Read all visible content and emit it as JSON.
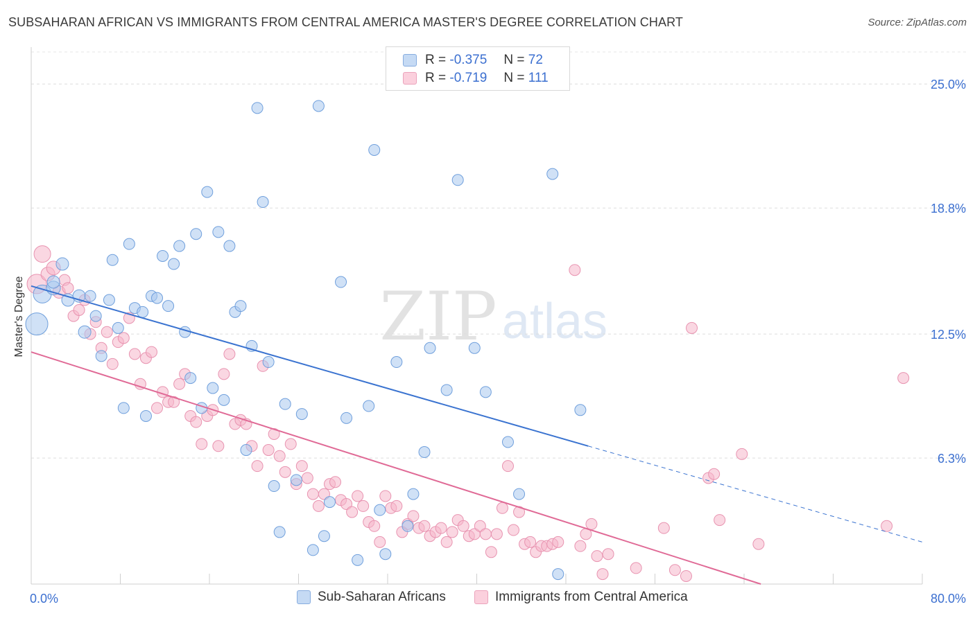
{
  "title": "SUBSAHARAN AFRICAN VS IMMIGRANTS FROM CENTRAL AMERICA MASTER'S DEGREE CORRELATION CHART",
  "source": "Source: ZipAtlas.com",
  "watermark": {
    "zip": "ZIP",
    "atlas": "atlas"
  },
  "colors": {
    "blue": "#3a73d0",
    "blue_fill": "#a9c8ee",
    "pink": "#e06a96",
    "pink_fill": "#f5b7ca",
    "axis_text": "#3b6fd0",
    "grid": "#dddddd"
  },
  "legend": {
    "series": [
      {
        "r_label": "R =",
        "r_value": "-0.375",
        "n_label": "N =",
        "n_value": "72",
        "color": "#a9c8ee"
      },
      {
        "r_label": "R =",
        "r_value": "-0.719",
        "n_label": "N =",
        "n_value": "111",
        "color": "#f5b7ca"
      }
    ]
  },
  "bottom_legend": [
    "Sub-Saharan Africans",
    "Immigrants from Central America"
  ],
  "chart_data": {
    "type": "scatter",
    "title": "SUBSAHARAN AFRICAN VS IMMIGRANTS FROM CENTRAL AMERICA MASTER'S DEGREE CORRELATION CHART",
    "xlabel": "",
    "ylabel": "Master's Degree",
    "xlim": [
      0,
      80
    ],
    "ylim": [
      0,
      26.6
    ],
    "x_tick_labels": [
      "0.0%",
      "80.0%"
    ],
    "y_ticks": [
      6.3,
      12.5,
      18.8,
      25.0
    ],
    "y_tick_labels": [
      "6.3%",
      "12.5%",
      "18.8%",
      "25.0%"
    ],
    "grid": "horizontal dashed",
    "series": [
      {
        "name": "Sub-Saharan Africans",
        "color": "#a9c8ee",
        "stroke": "#6f9fdc",
        "trend": {
          "x": [
            0,
            50
          ],
          "y": [
            14.9,
            6.9
          ],
          "dashed_to": [
            80,
            2.1
          ],
          "color": "#3a73d0"
        },
        "points": [
          [
            0.5,
            13.0,
            16
          ],
          [
            1.0,
            14.5,
            13
          ],
          [
            2.0,
            14.8,
            10
          ],
          [
            2.8,
            16.0,
            9
          ],
          [
            2.0,
            15.1,
            9
          ],
          [
            3.3,
            14.2,
            9
          ],
          [
            4.3,
            14.4,
            9
          ],
          [
            5.3,
            14.4,
            8
          ],
          [
            4.8,
            12.6,
            9
          ],
          [
            5.8,
            13.4,
            8
          ],
          [
            6.3,
            11.4,
            8
          ],
          [
            7.0,
            14.2,
            8
          ],
          [
            7.3,
            16.2,
            8
          ],
          [
            7.8,
            12.8,
            8
          ],
          [
            8.3,
            8.8,
            8
          ],
          [
            8.8,
            17.0,
            8
          ],
          [
            9.3,
            13.8,
            8
          ],
          [
            10.0,
            13.6,
            8
          ],
          [
            10.3,
            8.4,
            8
          ],
          [
            10.8,
            14.4,
            8
          ],
          [
            11.3,
            14.3,
            8
          ],
          [
            11.8,
            16.4,
            8
          ],
          [
            12.3,
            13.9,
            8
          ],
          [
            12.8,
            16.0,
            8
          ],
          [
            13.3,
            16.9,
            8
          ],
          [
            13.8,
            12.6,
            8
          ],
          [
            14.3,
            10.3,
            8
          ],
          [
            14.8,
            17.5,
            8
          ],
          [
            15.3,
            8.8,
            8
          ],
          [
            15.8,
            19.6,
            8
          ],
          [
            16.3,
            9.8,
            8
          ],
          [
            16.8,
            17.6,
            8
          ],
          [
            17.3,
            9.2,
            8
          ],
          [
            17.8,
            16.9,
            8
          ],
          [
            18.3,
            13.6,
            8
          ],
          [
            18.8,
            13.9,
            8
          ],
          [
            19.3,
            6.7,
            8
          ],
          [
            19.8,
            11.9,
            8
          ],
          [
            20.3,
            23.8,
            8
          ],
          [
            20.8,
            19.1,
            8
          ],
          [
            21.3,
            11.1,
            8
          ],
          [
            21.8,
            4.9,
            8
          ],
          [
            22.3,
            2.6,
            8
          ],
          [
            22.8,
            9.0,
            8
          ],
          [
            23.8,
            5.2,
            8
          ],
          [
            24.3,
            8.5,
            8
          ],
          [
            25.3,
            1.7,
            8
          ],
          [
            25.8,
            23.9,
            8
          ],
          [
            26.3,
            2.4,
            8
          ],
          [
            26.8,
            4.1,
            8
          ],
          [
            27.8,
            15.1,
            8
          ],
          [
            28.3,
            8.3,
            8
          ],
          [
            29.3,
            1.2,
            8
          ],
          [
            30.3,
            8.9,
            8
          ],
          [
            30.8,
            21.7,
            8
          ],
          [
            31.3,
            3.7,
            8
          ],
          [
            31.8,
            1.5,
            8
          ],
          [
            32.8,
            11.1,
            8
          ],
          [
            33.8,
            2.9,
            8
          ],
          [
            34.3,
            4.5,
            8
          ],
          [
            35.3,
            6.6,
            8
          ],
          [
            35.8,
            11.8,
            8
          ],
          [
            37.3,
            9.7,
            8
          ],
          [
            38.3,
            20.2,
            8
          ],
          [
            39.8,
            11.8,
            8
          ],
          [
            40.8,
            9.6,
            8
          ],
          [
            42.8,
            7.1,
            8
          ],
          [
            43.8,
            4.5,
            8
          ],
          [
            46.8,
            20.5,
            8
          ],
          [
            47.3,
            0.5,
            8
          ],
          [
            49.3,
            8.7,
            8
          ]
        ]
      },
      {
        "name": "Immigrants from Central America",
        "color": "#f5b7ca",
        "stroke": "#e893b0",
        "trend": {
          "x": [
            0,
            65.5
          ],
          "y": [
            11.6,
            0.0
          ],
          "color": "#e06a96"
        },
        "points": [
          [
            0.5,
            15.0,
            14
          ],
          [
            1.0,
            16.5,
            12
          ],
          [
            1.5,
            15.5,
            10
          ],
          [
            2.0,
            15.8,
            10
          ],
          [
            2.5,
            14.6,
            9
          ],
          [
            3.0,
            15.2,
            8
          ],
          [
            3.3,
            14.8,
            8
          ],
          [
            3.8,
            13.4,
            8
          ],
          [
            4.3,
            13.7,
            8
          ],
          [
            4.8,
            14.2,
            8
          ],
          [
            5.3,
            12.5,
            8
          ],
          [
            5.8,
            13.1,
            8
          ],
          [
            6.3,
            11.8,
            8
          ],
          [
            6.8,
            12.6,
            8
          ],
          [
            7.3,
            11.0,
            8
          ],
          [
            7.8,
            12.1,
            8
          ],
          [
            8.3,
            12.3,
            8
          ],
          [
            8.8,
            13.3,
            8
          ],
          [
            9.3,
            11.5,
            8
          ],
          [
            9.8,
            10.0,
            8
          ],
          [
            10.3,
            11.3,
            8
          ],
          [
            10.8,
            11.6,
            8
          ],
          [
            11.3,
            8.8,
            8
          ],
          [
            11.8,
            9.6,
            8
          ],
          [
            12.3,
            9.1,
            8
          ],
          [
            12.8,
            9.1,
            8
          ],
          [
            13.3,
            10.0,
            8
          ],
          [
            13.8,
            10.5,
            8
          ],
          [
            14.3,
            8.4,
            8
          ],
          [
            14.8,
            8.1,
            8
          ],
          [
            15.3,
            7.0,
            8
          ],
          [
            15.8,
            8.4,
            8
          ],
          [
            16.3,
            8.7,
            8
          ],
          [
            16.8,
            6.9,
            8
          ],
          [
            17.3,
            10.5,
            8
          ],
          [
            17.8,
            11.5,
            8
          ],
          [
            18.3,
            8.0,
            8
          ],
          [
            18.8,
            8.2,
            8
          ],
          [
            19.3,
            8.0,
            8
          ],
          [
            19.8,
            6.9,
            8
          ],
          [
            20.3,
            5.9,
            8
          ],
          [
            20.8,
            10.9,
            8
          ],
          [
            21.3,
            6.7,
            8
          ],
          [
            21.8,
            7.5,
            8
          ],
          [
            22.3,
            6.4,
            8
          ],
          [
            22.8,
            5.6,
            8
          ],
          [
            23.3,
            7.0,
            8
          ],
          [
            23.8,
            5.0,
            8
          ],
          [
            24.3,
            5.9,
            8
          ],
          [
            24.8,
            5.3,
            8
          ],
          [
            25.3,
            4.5,
            8
          ],
          [
            25.8,
            3.9,
            8
          ],
          [
            26.3,
            4.5,
            8
          ],
          [
            26.8,
            5.0,
            8
          ],
          [
            27.3,
            5.1,
            8
          ],
          [
            27.8,
            4.2,
            8
          ],
          [
            28.3,
            4.0,
            8
          ],
          [
            28.8,
            3.6,
            8
          ],
          [
            29.3,
            4.4,
            8
          ],
          [
            29.8,
            3.9,
            8
          ],
          [
            30.3,
            3.1,
            8
          ],
          [
            30.8,
            2.9,
            8
          ],
          [
            31.3,
            2.1,
            8
          ],
          [
            31.8,
            4.4,
            8
          ],
          [
            32.3,
            3.8,
            8
          ],
          [
            32.8,
            3.9,
            8
          ],
          [
            33.3,
            2.6,
            8
          ],
          [
            33.8,
            3.0,
            8
          ],
          [
            34.3,
            3.4,
            8
          ],
          [
            34.8,
            2.8,
            8
          ],
          [
            35.3,
            2.9,
            8
          ],
          [
            35.8,
            2.4,
            8
          ],
          [
            36.3,
            2.6,
            8
          ],
          [
            36.8,
            2.8,
            8
          ],
          [
            37.3,
            2.1,
            8
          ],
          [
            37.8,
            2.6,
            8
          ],
          [
            38.3,
            3.2,
            8
          ],
          [
            38.8,
            2.9,
            8
          ],
          [
            39.3,
            2.4,
            8
          ],
          [
            39.8,
            2.5,
            8
          ],
          [
            40.3,
            2.9,
            8
          ],
          [
            40.8,
            2.5,
            8
          ],
          [
            41.3,
            1.6,
            8
          ],
          [
            41.8,
            2.5,
            8
          ],
          [
            42.3,
            3.8,
            8
          ],
          [
            42.8,
            5.9,
            8
          ],
          [
            43.3,
            2.7,
            8
          ],
          [
            43.8,
            3.6,
            8
          ],
          [
            44.3,
            2.0,
            8
          ],
          [
            44.8,
            2.1,
            8
          ],
          [
            45.3,
            1.6,
            8
          ],
          [
            45.8,
            1.9,
            8
          ],
          [
            46.3,
            1.9,
            8
          ],
          [
            46.8,
            2.0,
            8
          ],
          [
            47.3,
            2.1,
            8
          ],
          [
            48.8,
            15.7,
            8
          ],
          [
            49.3,
            1.9,
            8
          ],
          [
            49.8,
            2.5,
            8
          ],
          [
            50.3,
            3.0,
            8
          ],
          [
            50.8,
            1.4,
            8
          ],
          [
            51.3,
            0.5,
            8
          ],
          [
            51.8,
            1.5,
            8
          ],
          [
            54.3,
            0.8,
            8
          ],
          [
            56.8,
            2.8,
            8
          ],
          [
            57.8,
            0.7,
            8
          ],
          [
            58.8,
            0.4,
            8
          ],
          [
            59.3,
            12.8,
            8
          ],
          [
            60.8,
            5.3,
            8
          ],
          [
            61.3,
            5.5,
            8
          ],
          [
            61.8,
            3.2,
            8
          ],
          [
            63.8,
            6.5,
            8
          ],
          [
            65.3,
            2.0,
            8
          ],
          [
            76.8,
            2.9,
            8
          ],
          [
            78.3,
            10.3,
            8
          ]
        ]
      }
    ]
  }
}
